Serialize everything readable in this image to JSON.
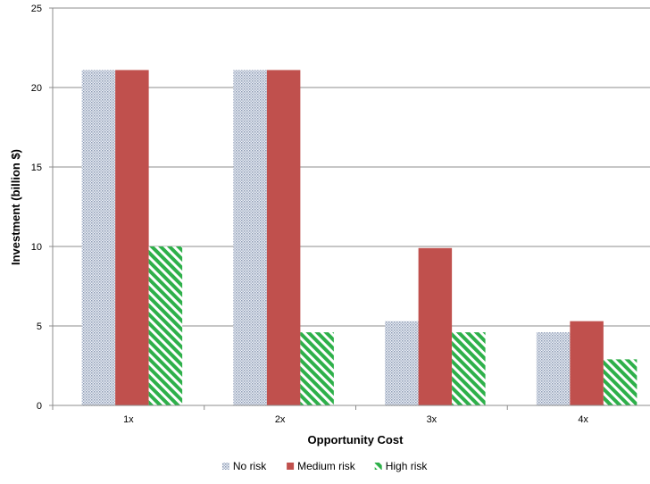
{
  "chart_data": {
    "type": "bar",
    "categories": [
      "1x",
      "2x",
      "3x",
      "4x"
    ],
    "series": [
      {
        "name": "No risk",
        "values": [
          21.1,
          21.1,
          5.3,
          4.6
        ],
        "color": "#b8c4d8",
        "pattern": "dotted"
      },
      {
        "name": "Medium risk",
        "values": [
          21.1,
          21.1,
          9.9,
          5.3
        ],
        "color": "#c0504d",
        "pattern": "solid"
      },
      {
        "name": "High risk",
        "values": [
          10.0,
          4.6,
          4.6,
          2.9
        ],
        "color": "#2eb04a",
        "pattern": "diagonal-stripes"
      }
    ],
    "title": "",
    "xlabel": "Opportunity Cost",
    "ylabel": "Investment (billion $)",
    "ylim": [
      0,
      25
    ],
    "yticks": [
      "0",
      "5",
      "10",
      "15",
      "20",
      "25"
    ],
    "grid": true,
    "legend_position": "bottom"
  }
}
